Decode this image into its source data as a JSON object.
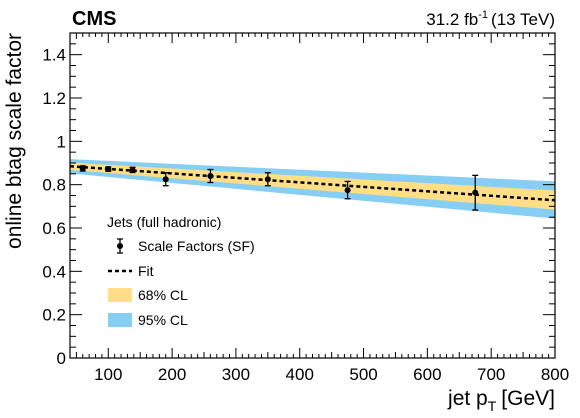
{
  "header": {
    "experiment": "CMS",
    "lumi_value": "31.2 fb",
    "lumi_exp": "-1",
    "energy": "(13 TeV)"
  },
  "chart_data": {
    "type": "scatter",
    "xlabel_main": "jet p",
    "xlabel_sub": "T",
    "xlabel_unit": "[GeV]",
    "ylabel": "online btag scale factor",
    "xlim": [
      40,
      800
    ],
    "ylim": [
      0,
      1.5
    ],
    "x_ticks": [
      100,
      200,
      300,
      400,
      500,
      600,
      700,
      800
    ],
    "y_ticks": [
      0,
      0.2,
      0.4,
      0.6,
      0.8,
      1,
      1.2,
      1.4
    ],
    "series": [
      {
        "name": "Scale Factors (SF)",
        "x": [
          60,
          100,
          138,
          190,
          260,
          350,
          475,
          675
        ],
        "xerr": [
          0,
          0,
          0,
          0,
          0,
          0,
          0,
          0
        ],
        "y": [
          0.875,
          0.872,
          0.868,
          0.825,
          0.84,
          0.825,
          0.775,
          0.763
        ],
        "yerr": [
          0.012,
          0.01,
          0.012,
          0.03,
          0.03,
          0.03,
          0.04,
          0.08
        ]
      },
      {
        "name": "Fit",
        "line": {
          "x": [
            40,
            800
          ],
          "y": [
            0.885,
            0.728
          ]
        }
      }
    ],
    "bands": {
      "cl68": {
        "name": "68% CL",
        "color": "#FFDE85",
        "x": [
          40,
          800
        ],
        "lower": [
          0.868,
          0.685
        ],
        "upper": [
          0.902,
          0.773
        ]
      },
      "cl95": {
        "name": "95% CL",
        "color": "#87CEF5",
        "x": [
          40,
          800
        ],
        "lower": [
          0.852,
          0.643
        ],
        "upper": [
          0.918,
          0.815
        ]
      }
    },
    "legend": {
      "title": "Jets (full hadronic)",
      "placement": "bottom-left",
      "entries": [
        "Scale Factors (SF)",
        "Fit",
        "68% CL",
        "95% CL"
      ]
    }
  }
}
